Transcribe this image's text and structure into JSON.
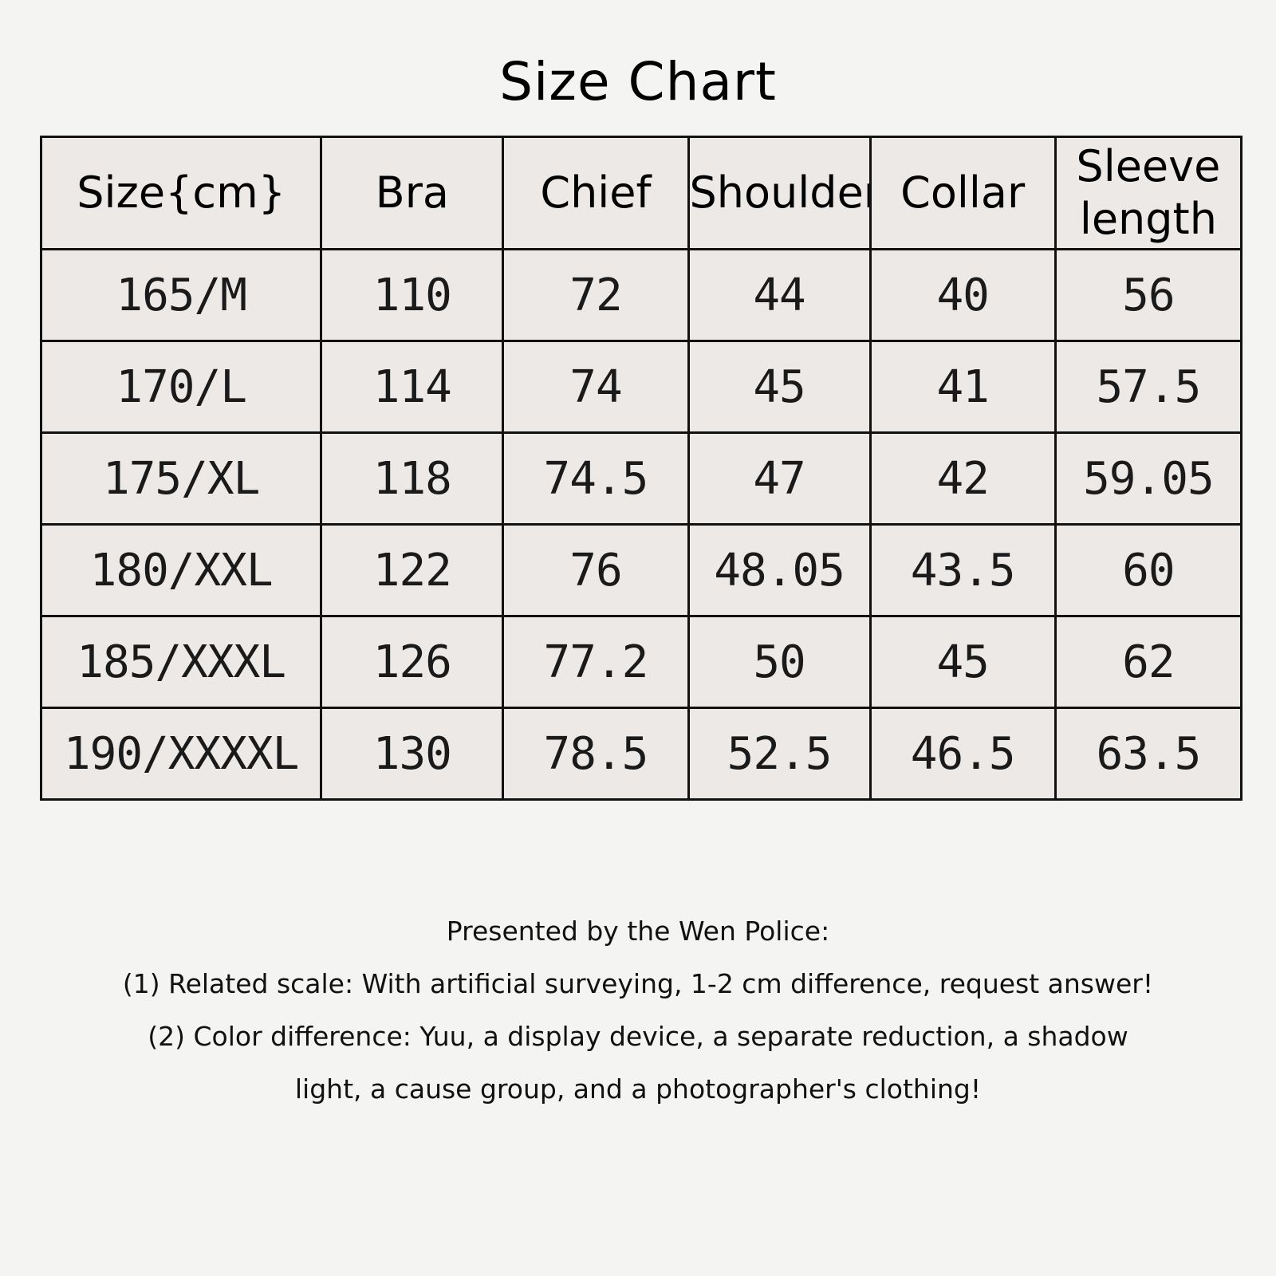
{
  "title": "Size Chart",
  "table": {
    "headers": [
      "Size{cm}",
      "Bra",
      "Chief",
      "Shoulder",
      "Collar",
      "Sleeve length"
    ],
    "rows": [
      [
        "165/M",
        "110",
        "72",
        "44",
        "40",
        "56"
      ],
      [
        "170/L",
        "114",
        "74",
        "45",
        "41",
        "57.5"
      ],
      [
        "175/XL",
        "118",
        "74.5",
        "47",
        "42",
        "59.05"
      ],
      [
        "180/XXL",
        "122",
        "76",
        "48.05",
        "43.5",
        "60"
      ],
      [
        "185/XXXL",
        "126",
        "77.2",
        "50",
        "45",
        "62"
      ],
      [
        "190/XXXXL",
        "130",
        "78.5",
        "52.5",
        "46.5",
        "63.5"
      ]
    ]
  },
  "notes": {
    "intro": "Presented by the Wen Police:",
    "line1": "(1) Related scale: With artificial surveying, 1-2 cm difference, request answer!",
    "line2": "(2) Color difference: Yuu, a display device, a separate reduction, a shadow",
    "line3": "light, a cause group, and a photographer's clothing!"
  },
  "colors": {
    "background": "#f4f4f2",
    "table_fill": "#ece9e7",
    "border": "#111111"
  }
}
